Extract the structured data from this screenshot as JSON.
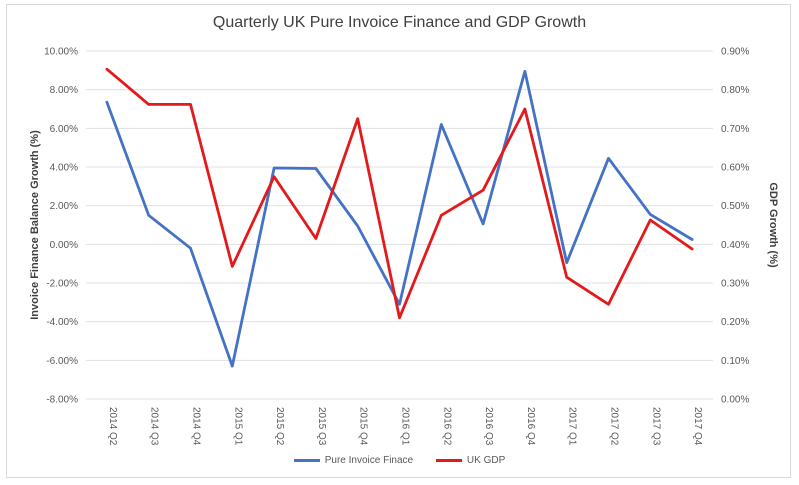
{
  "chart_data": {
    "type": "line",
    "title": "Quarterly UK Pure Invoice Finance and GDP Growth",
    "categories": [
      "2014 Q2",
      "2014 Q3",
      "2014 Q4",
      "2015 Q1",
      "2015 Q2",
      "2015 Q3",
      "2015 Q4",
      "2016 Q1",
      "2016 Q2",
      "2016 Q3",
      "2016 Q4",
      "2017 Q1",
      "2017 Q2",
      "2017 Q3",
      "2017 Q4"
    ],
    "ylabel": "Invoice Finance Balance Growth (%)",
    "y2label": "GDP Growth (%)",
    "ylim": [
      -8,
      10
    ],
    "y2lim": [
      0,
      0.9
    ],
    "yticks": [
      "10.00%",
      "8.00%",
      "6.00%",
      "4.00%",
      "2.00%",
      "0.00%",
      "-2.00%",
      "-4.00%",
      "-6.00%",
      "-8.00%"
    ],
    "y2ticks": [
      "0.90%",
      "0.80%",
      "0.70%",
      "0.60%",
      "0.50%",
      "0.40%",
      "0.30%",
      "0.20%",
      "0.10%",
      "0.00%"
    ],
    "series": [
      {
        "name": "Pure Invoice Finace",
        "axis": "left",
        "color": "#4472c4",
        "values": [
          7.35,
          1.5,
          -0.2,
          -6.3,
          3.95,
          3.92,
          0.95,
          -3.1,
          6.2,
          1.05,
          8.95,
          -0.95,
          4.45,
          1.55,
          0.25
        ]
      },
      {
        "name": "UK GDP",
        "axis": "right",
        "color": "#e31a1c",
        "values": [
          0.853,
          0.762,
          0.762,
          0.343,
          0.575,
          0.415,
          0.725,
          0.21,
          0.475,
          0.54,
          0.75,
          0.315,
          0.245,
          0.463,
          0.388
        ]
      }
    ],
    "legend_position": "bottom"
  }
}
